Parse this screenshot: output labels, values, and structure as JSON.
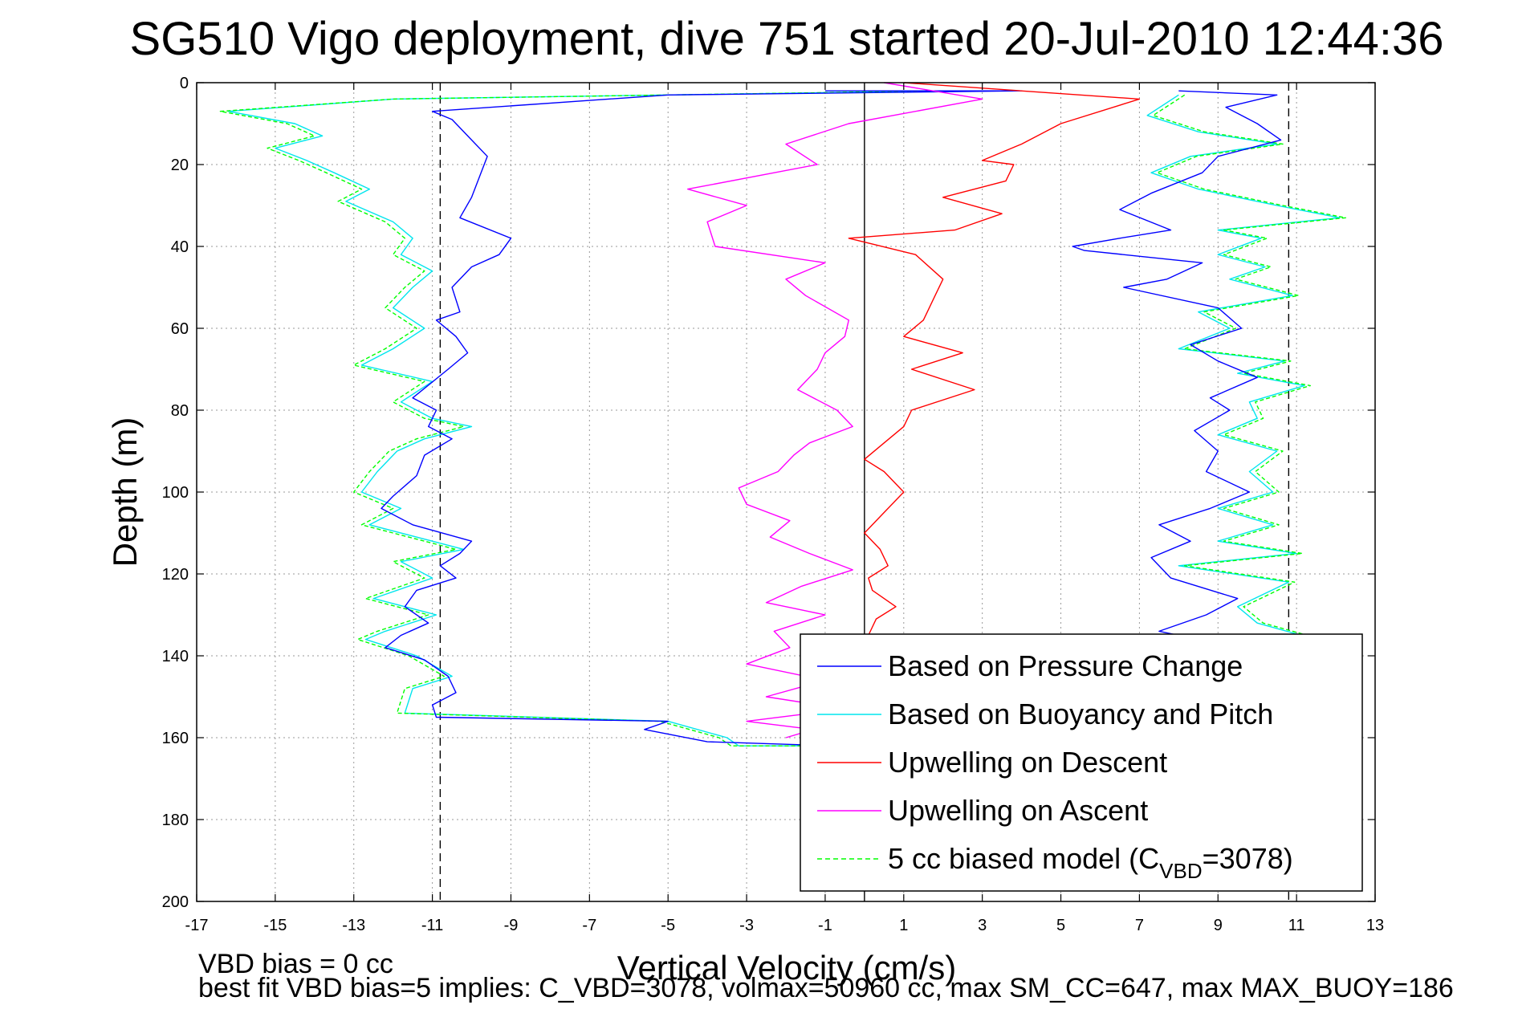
{
  "chart_data": {
    "type": "line",
    "title": "SG510 Vigo deployment, dive 751 started 20-Jul-2010 12:44:36",
    "xlabel": "Vertical Velocity (cm/s)",
    "ylabel": "Depth (m)",
    "xlim": [
      -17,
      13
    ],
    "ylim": [
      0,
      200
    ],
    "y_reversed": true,
    "xticks": [
      -17,
      -15,
      -13,
      -11,
      -9,
      -7,
      -5,
      -3,
      -1,
      1,
      3,
      5,
      7,
      9,
      11,
      13
    ],
    "yticks": [
      0,
      20,
      40,
      60,
      80,
      100,
      120,
      140,
      160,
      180,
      200
    ],
    "grid": true,
    "legend_position": "bottom-right",
    "reference_lines": [
      {
        "x": -10.8,
        "style": "dashed",
        "color": "#000000"
      },
      {
        "x": 10.8,
        "style": "dashed",
        "color": "#000000"
      },
      {
        "x": 0,
        "style": "solid",
        "color": "#000000"
      }
    ],
    "series": [
      {
        "name": "Based on Pressure Change",
        "color": "#0000ff",
        "x": [
          -1.0,
          4.0,
          -5.0,
          -11.0,
          -10.5,
          -10.0,
          -9.6,
          -9.8,
          -10.0,
          -10.3,
          -9.0,
          -9.3,
          -10.0,
          -10.5,
          -10.3,
          -10.9,
          -10.4,
          -10.1,
          -10.6,
          -11.5,
          -10.9,
          -11.1,
          -10.5,
          -11.2,
          -11.4,
          -12.0,
          -12.3,
          -11.5,
          -10.0,
          -10.3,
          -10.8,
          -10.4,
          -11.4,
          -11.7,
          -11.1,
          -11.8,
          -12.2,
          -11.2,
          -10.6,
          -10.4,
          -11.0,
          -10.9,
          -5.0,
          -5.6,
          -4.0,
          -0.7,
          0.5,
          0.2,
          1.0,
          1.5,
          0.5
        ],
        "y": [
          2,
          2,
          3,
          7,
          9,
          14,
          18,
          23,
          28,
          33,
          38,
          42,
          45,
          50,
          56,
          58,
          62,
          66,
          70,
          77,
          80,
          84,
          87,
          91,
          96,
          101,
          104,
          108,
          112,
          115,
          118,
          121,
          124,
          128,
          132,
          135,
          138,
          141,
          145,
          149,
          152,
          155,
          156,
          158,
          161,
          162,
          160,
          158,
          155,
          152,
          150
        ]
      },
      {
        "name": "Based on Buoyancy and Pitch",
        "color": "#00e5ee",
        "x": [
          2.0,
          -12.0,
          -16.2,
          -14.5,
          -13.8,
          -15.0,
          -14.2,
          -13.5,
          -12.6,
          -13.2,
          -12.0,
          -11.5,
          -11.8,
          -11.0,
          -11.5,
          -12.0,
          -11.2,
          -12.0,
          -12.8,
          -11.0,
          -11.8,
          -11.0,
          -10.0,
          -11.2,
          -11.9,
          -12.4,
          -12.8,
          -11.8,
          -12.6,
          -11.0,
          -10.2,
          -11.8,
          -11.0,
          -12.5,
          -10.9,
          -12.2,
          -12.7,
          -11.4,
          -10.5,
          -11.5,
          -11.7,
          -5.0,
          -3.5,
          -3.2,
          0.5
        ],
        "y": [
          2,
          4,
          7,
          10,
          13,
          16,
          19,
          22,
          26,
          29,
          34,
          38,
          42,
          46,
          50,
          55,
          60,
          65,
          69,
          73,
          78,
          82,
          84,
          87,
          90,
          95,
          100,
          104,
          108,
          112,
          114,
          117,
          121,
          126,
          130,
          134,
          136,
          140,
          145,
          148,
          154,
          156,
          160,
          162,
          162
        ]
      },
      {
        "name": "Upwelling on Descent",
        "color": "#ff0000",
        "x": [
          1.0,
          7.0,
          5.0,
          4.0,
          3.0,
          3.8,
          3.6,
          2.0,
          3.5,
          2.3,
          -0.4,
          1.3,
          2.0,
          1.8,
          1.5,
          1.0,
          2.5,
          1.2,
          2.8,
          1.2,
          1.0,
          0.5,
          0.0,
          0.5,
          1.0,
          0.5,
          0.0,
          0.4,
          0.6,
          0.1,
          0.2,
          0.8,
          0.3,
          0.1,
          0.5,
          -0.2,
          0.3,
          1.0,
          -0.3,
          0.0,
          0.2,
          0.1
        ],
        "y": [
          0,
          4,
          10,
          15,
          19,
          20,
          24,
          28,
          32,
          36,
          38,
          42,
          48,
          52,
          58,
          62,
          66,
          70,
          75,
          80,
          84,
          88,
          92,
          95,
          100,
          105,
          110,
          114,
          118,
          121,
          124,
          128,
          131,
          135,
          140,
          145,
          150,
          154,
          157,
          160,
          163,
          166
        ]
      },
      {
        "name": "Upwelling on Ascent",
        "color": "#ff00ff",
        "x": [
          0.5,
          3.0,
          -0.4,
          -2.0,
          -1.2,
          -4.5,
          -3.0,
          -4.0,
          -3.8,
          -1.0,
          -2.0,
          -1.5,
          -0.4,
          -0.5,
          -1.0,
          -1.2,
          -1.7,
          -0.7,
          -0.3,
          -1.4,
          -1.8,
          -2.2,
          -3.2,
          -3.0,
          -1.9,
          -2.4,
          -1.4,
          -0.3,
          -1.6,
          -2.5,
          -1.0,
          -2.3,
          -1.9,
          -3.0,
          -1.0,
          -2.5,
          -0.5,
          -3.0,
          -1.3,
          -2.0
        ],
        "y": [
          0,
          4,
          10,
          15,
          20,
          26,
          30,
          34,
          40,
          44,
          48,
          52,
          58,
          62,
          66,
          70,
          75,
          80,
          84,
          88,
          91,
          95,
          99,
          103,
          107,
          111,
          115,
          119,
          123,
          127,
          130,
          134,
          138,
          142,
          146,
          150,
          153,
          156,
          158,
          160
        ]
      },
      {
        "name": "5 cc biased model (C_VBD=3078)",
        "color": "#00ff00",
        "dashed": true,
        "x": [
          2.0,
          -12.0,
          -16.4,
          -14.7,
          -14.0,
          -15.2,
          -14.4,
          -13.7,
          -12.8,
          -13.4,
          -12.2,
          -11.7,
          -12.0,
          -11.2,
          -11.7,
          -12.2,
          -11.4,
          -12.2,
          -13.0,
          -11.2,
          -12.0,
          -11.2,
          -10.2,
          -11.4,
          -12.1,
          -12.6,
          -13.0,
          -12.0,
          -12.8,
          -11.2,
          -10.4,
          -12.0,
          -11.2,
          -12.7,
          -11.1,
          -12.4,
          -12.9,
          -11.6,
          -10.7,
          -11.7,
          -11.9,
          -5.2,
          -3.7,
          -3.4,
          0.3
        ],
        "y": [
          2,
          4,
          7,
          10,
          13,
          16,
          19,
          22,
          26,
          29,
          34,
          38,
          42,
          46,
          50,
          55,
          60,
          65,
          69,
          73,
          78,
          82,
          84,
          87,
          90,
          95,
          100,
          104,
          108,
          112,
          114,
          117,
          121,
          126,
          130,
          134,
          136,
          140,
          145,
          148,
          154,
          156,
          160,
          162,
          162
        ]
      }
    ],
    "right_group": {
      "blue": {
        "x": [
          8.0,
          10.5,
          9.2,
          10.0,
          10.6,
          9.0,
          8.6,
          7.3,
          6.5,
          7.8,
          6.5,
          5.3,
          5.6,
          8.6,
          7.7,
          6.6,
          9.0,
          9.6,
          8.3,
          9.0,
          10.0,
          8.8,
          9.3,
          8.4,
          9.0,
          8.7,
          9.8,
          8.8,
          7.5,
          8.3,
          7.3,
          7.8,
          9.5,
          8.7,
          7.5,
          9.0,
          8.8,
          10.0
        ],
        "y": [
          2,
          3,
          6,
          10,
          14,
          18,
          22,
          27,
          31,
          36,
          38,
          40,
          41,
          44,
          48,
          50,
          55,
          60,
          64,
          68,
          72,
          77,
          80,
          85,
          90,
          95,
          100,
          104,
          108,
          112,
          116,
          121,
          126,
          130,
          134,
          137,
          140,
          143
        ]
      },
      "cyan": {
        "x": [
          8.0,
          7.2,
          8.5,
          10.5,
          8.3,
          7.3,
          8.5,
          10.5,
          12.1,
          9.0,
          10.1,
          9.0,
          10.2,
          9.3,
          10.9,
          8.5,
          9.3,
          8.0,
          10.7,
          9.5,
          11.2,
          9.8,
          10.0,
          9.0,
          10.5,
          9.8,
          10.4,
          9.0,
          10.4,
          9.0,
          11.0,
          8.0,
          10.8,
          9.5,
          10.0,
          11.5
        ],
        "y": [
          3,
          8,
          12,
          15,
          18,
          22,
          26,
          30,
          33,
          36,
          38,
          42,
          45,
          48,
          52,
          56,
          60,
          65,
          68,
          71,
          74,
          78,
          82,
          86,
          90,
          95,
          100,
          104,
          108,
          112,
          115,
          118,
          122,
          128,
          132,
          136
        ]
      }
    },
    "footer_text": [
      "VBD bias = 0 cc",
      "best fit VBD bias=5 implies: C_VBD=3078, volmax=50960 cc, max SM_CC=647, max MAX_BUOY=186"
    ]
  },
  "legend": {
    "items": [
      {
        "label": "Based on Pressure Change",
        "color": "#0000ff",
        "dashed": false
      },
      {
        "label": "Based on Buoyancy and Pitch",
        "color": "#00e5ee",
        "dashed": false
      },
      {
        "label": "Upwelling on Descent",
        "color": "#ff0000",
        "dashed": false
      },
      {
        "label": "Upwelling on Ascent",
        "color": "#ff00ff",
        "dashed": false
      },
      {
        "label_prefix": "5 cc biased model (C",
        "label_sub": "VBD",
        "label_suffix": "=3078)",
        "color": "#00ff00",
        "dashed": true
      }
    ]
  },
  "footer": {
    "line1": "VBD bias = 0 cc",
    "line2": "best fit VBD bias=5 implies: C_VBD=3078, volmax=50960 cc, max SM_CC=647, max MAX_BUOY=186"
  }
}
